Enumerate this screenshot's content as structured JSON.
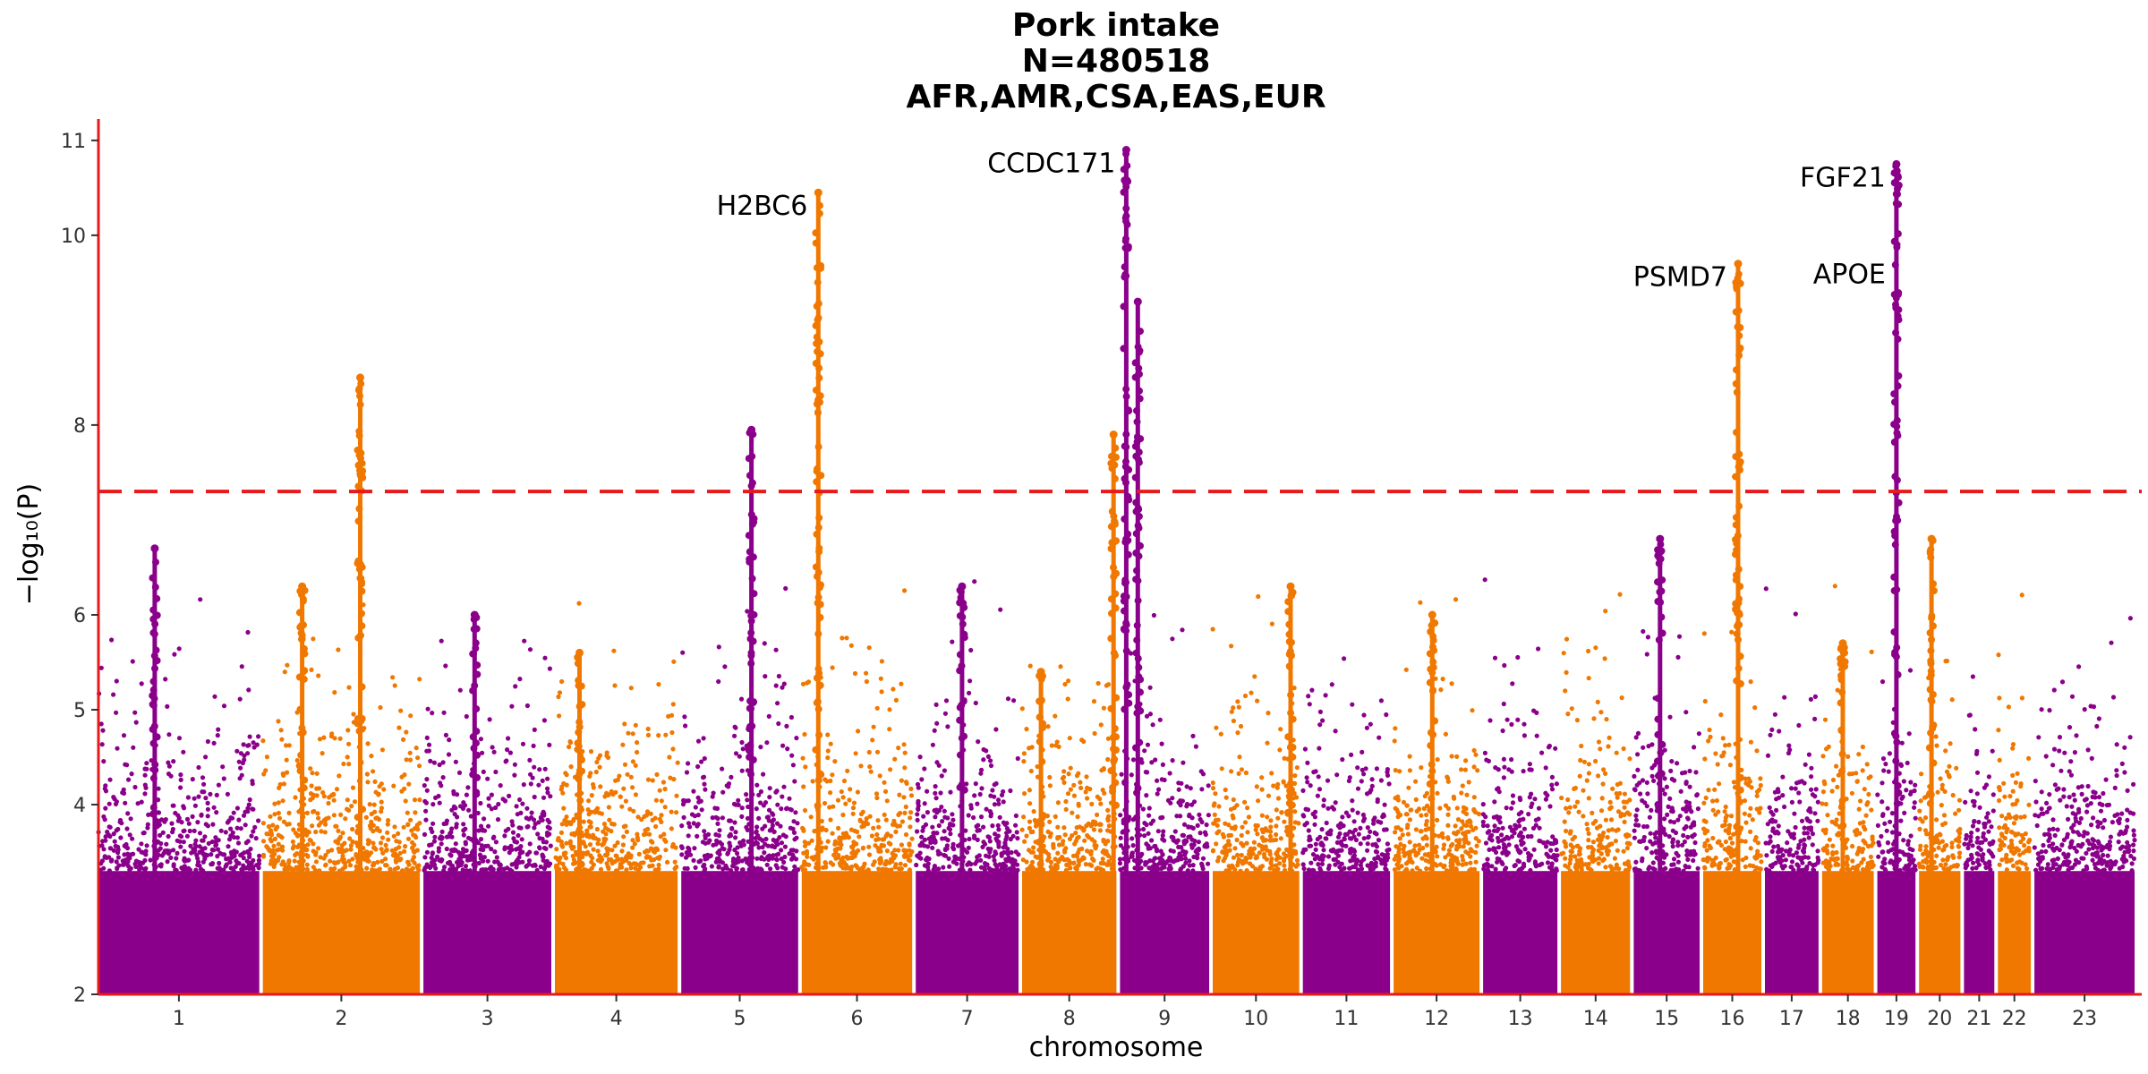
{
  "chart_data": {
    "type": "scatter",
    "title_lines": [
      "Pork intake",
      "N=480518",
      "AFR,AMR,CSA,EAS,EUR"
    ],
    "xlabel": "chromosome",
    "ylabel": "−log₁₀(P)",
    "ylim": [
      2,
      11.15
    ],
    "yticks": [
      2,
      4,
      5,
      6,
      8,
      10,
      11
    ],
    "significance_line": 7.3,
    "colors": {
      "odd": "#8B008B",
      "even": "#F07800",
      "threshold": "#E8191B",
      "axis": "#E8191B"
    },
    "chromosomes": [
      {
        "label": "1",
        "size": 249
      },
      {
        "label": "2",
        "size": 243
      },
      {
        "label": "3",
        "size": 198
      },
      {
        "label": "4",
        "size": 190
      },
      {
        "label": "5",
        "size": 181
      },
      {
        "label": "6",
        "size": 171
      },
      {
        "label": "7",
        "size": 159
      },
      {
        "label": "8",
        "size": 146
      },
      {
        "label": "9",
        "size": 138
      },
      {
        "label": "10",
        "size": 134
      },
      {
        "label": "11",
        "size": 135
      },
      {
        "label": "12",
        "size": 133
      },
      {
        "label": "13",
        "size": 115
      },
      {
        "label": "14",
        "size": 107
      },
      {
        "label": "15",
        "size": 102
      },
      {
        "label": "16",
        "size": 90
      },
      {
        "label": "17",
        "size": 83
      },
      {
        "label": "18",
        "size": 80
      },
      {
        "label": "19",
        "size": 59
      },
      {
        "label": "20",
        "size": 64
      },
      {
        "label": "21",
        "size": 47
      },
      {
        "label": "22",
        "size": 51
      },
      {
        "label": "23",
        "size": 155
      }
    ],
    "peaks": [
      {
        "chr": 1,
        "pos": 0.35,
        "max": 6.7
      },
      {
        "chr": 2,
        "pos": 0.25,
        "max": 6.3
      },
      {
        "chr": 2,
        "pos": 0.62,
        "max": 8.5
      },
      {
        "chr": 3,
        "pos": 0.4,
        "max": 6.0
      },
      {
        "chr": 4,
        "pos": 0.2,
        "max": 5.6
      },
      {
        "chr": 5,
        "pos": 0.6,
        "max": 7.95
      },
      {
        "chr": 6,
        "pos": 0.15,
        "max": 10.45
      },
      {
        "chr": 7,
        "pos": 0.45,
        "max": 6.3
      },
      {
        "chr": 8,
        "pos": 0.2,
        "max": 5.4
      },
      {
        "chr": 8,
        "pos": 0.97,
        "max": 7.9
      },
      {
        "chr": 9,
        "pos": 0.07,
        "max": 10.9
      },
      {
        "chr": 9,
        "pos": 0.2,
        "max": 9.3
      },
      {
        "chr": 10,
        "pos": 0.9,
        "max": 6.3
      },
      {
        "chr": 12,
        "pos": 0.45,
        "max": 6.0
      },
      {
        "chr": 15,
        "pos": 0.4,
        "max": 6.8
      },
      {
        "chr": 16,
        "pos": 0.6,
        "max": 9.7
      },
      {
        "chr": 18,
        "pos": 0.4,
        "max": 5.7
      },
      {
        "chr": 19,
        "pos": 0.5,
        "max": 10.75
      },
      {
        "chr": 20,
        "pos": 0.3,
        "max": 6.8
      }
    ],
    "annotations": [
      {
        "label": "H2BC6",
        "x_chr": 6,
        "x_pos": 0.15,
        "y": 10.45
      },
      {
        "label": "CCDC171",
        "x_chr": 9,
        "x_pos": 0.07,
        "y": 10.9
      },
      {
        "label": "PSMD7",
        "x_chr": 16,
        "x_pos": 0.6,
        "y": 9.7
      },
      {
        "label": "FGF21",
        "x_chr": 19,
        "x_pos": 0.5,
        "y": 10.75
      },
      {
        "label": "APOE",
        "x_chr": 19,
        "x_pos": 0.5,
        "y": 9.73
      }
    ]
  }
}
